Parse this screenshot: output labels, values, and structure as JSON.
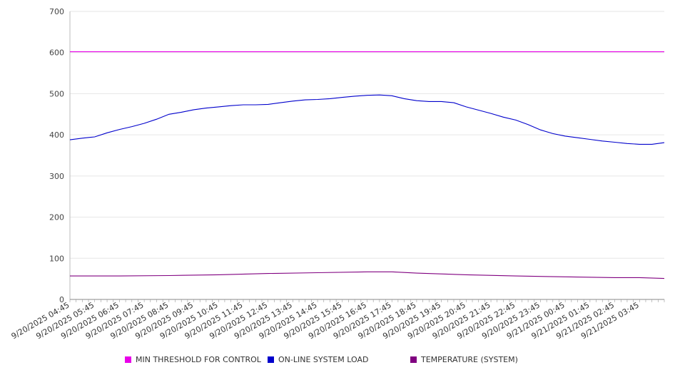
{
  "chart_data": {
    "type": "line",
    "title": "",
    "xlabel": "",
    "ylabel": "",
    "ylim": [
      0,
      700
    ],
    "yticks": [
      0,
      100,
      200,
      300,
      400,
      500,
      600,
      700
    ],
    "grid": "horizontal",
    "legend_position": "bottom",
    "x_tick_labels": [
      "9/20/2025 04:45",
      "9/20/2025 05:45",
      "9/20/2025 06:45",
      "9/20/2025 07:45",
      "9/20/2025 08:45",
      "9/20/2025 09:45",
      "9/20/2025 10:45",
      "9/20/2025 11:45",
      "9/20/2025 12:45",
      "9/20/2025 13:45",
      "9/20/2025 14:45",
      "9/20/2025 15:45",
      "9/20/2025 16:45",
      "9/20/2025 17:45",
      "9/20/2025 18:45",
      "9/20/2025 19:45",
      "9/20/2025 20:45",
      "9/20/2025 21:45",
      "9/20/2025 22:45",
      "9/20/2025 23:45",
      "9/21/2025 00:45",
      "9/21/2025 01:45",
      "9/21/2025 02:45",
      "9/21/2025 03:45"
    ],
    "x_range": [
      "9/20/2025 04:45",
      "9/21/2025 04:45"
    ],
    "series": [
      {
        "name": "MIN THRESHOLD FOR CONTROL",
        "color": "#e800e8",
        "points": [
          [
            "9/20/2025 04:45",
            602
          ],
          [
            "9/21/2025 04:45",
            602
          ]
        ]
      },
      {
        "name": "ON-LINE SYSTEM LOAD",
        "color": "#0000cc",
        "points": [
          [
            "9/20/2025 04:45",
            388
          ],
          [
            "9/20/2025 05:15",
            392
          ],
          [
            "9/20/2025 05:45",
            395
          ],
          [
            "9/20/2025 06:15",
            405
          ],
          [
            "9/20/2025 06:45",
            413
          ],
          [
            "9/20/2025 07:15",
            420
          ],
          [
            "9/20/2025 07:45",
            428
          ],
          [
            "9/20/2025 08:15",
            438
          ],
          [
            "9/20/2025 08:45",
            450
          ],
          [
            "9/20/2025 09:15",
            455
          ],
          [
            "9/20/2025 09:45",
            461
          ],
          [
            "9/20/2025 10:15",
            465
          ],
          [
            "9/20/2025 10:45",
            468
          ],
          [
            "9/20/2025 11:15",
            471
          ],
          [
            "9/20/2025 11:45",
            473
          ],
          [
            "9/20/2025 12:15",
            473
          ],
          [
            "9/20/2025 12:45",
            474
          ],
          [
            "9/20/2025 13:15",
            478
          ],
          [
            "9/20/2025 13:45",
            482
          ],
          [
            "9/20/2025 14:15",
            485
          ],
          [
            "9/20/2025 14:45",
            486
          ],
          [
            "9/20/2025 15:15",
            488
          ],
          [
            "9/20/2025 15:45",
            491
          ],
          [
            "9/20/2025 16:15",
            494
          ],
          [
            "9/20/2025 16:45",
            496
          ],
          [
            "9/20/2025 17:15",
            497
          ],
          [
            "9/20/2025 17:45",
            495
          ],
          [
            "9/20/2025 18:15",
            488
          ],
          [
            "9/20/2025 18:45",
            483
          ],
          [
            "9/20/2025 19:15",
            481
          ],
          [
            "9/20/2025 19:45",
            481
          ],
          [
            "9/20/2025 20:15",
            478
          ],
          [
            "9/20/2025 20:45",
            468
          ],
          [
            "9/20/2025 21:15",
            460
          ],
          [
            "9/20/2025 21:45",
            452
          ],
          [
            "9/20/2025 22:15",
            443
          ],
          [
            "9/20/2025 22:45",
            436
          ],
          [
            "9/20/2025 23:15",
            425
          ],
          [
            "9/20/2025 23:45",
            412
          ],
          [
            "9/21/2025 00:15",
            403
          ],
          [
            "9/21/2025 00:45",
            397
          ],
          [
            "9/21/2025 01:15",
            393
          ],
          [
            "9/21/2025 01:45",
            389
          ],
          [
            "9/21/2025 02:15",
            385
          ],
          [
            "9/21/2025 02:45",
            382
          ],
          [
            "9/21/2025 03:15",
            379
          ],
          [
            "9/21/2025 03:45",
            377
          ],
          [
            "9/21/2025 04:15",
            377
          ],
          [
            "9/21/2025 04:45",
            381
          ]
        ]
      },
      {
        "name": "TEMPERATURE (SYSTEM)",
        "color": "#800080",
        "points": [
          [
            "9/20/2025 04:45",
            57
          ],
          [
            "9/20/2025 06:45",
            57
          ],
          [
            "9/20/2025 08:45",
            58
          ],
          [
            "9/20/2025 10:45",
            60
          ],
          [
            "9/20/2025 12:45",
            63
          ],
          [
            "9/20/2025 14:45",
            65
          ],
          [
            "9/20/2025 16:45",
            67
          ],
          [
            "9/20/2025 17:45",
            67
          ],
          [
            "9/20/2025 18:45",
            64
          ],
          [
            "9/20/2025 20:45",
            60
          ],
          [
            "9/20/2025 22:45",
            57
          ],
          [
            "9/21/2025 00:45",
            55
          ],
          [
            "9/21/2025 02:45",
            53
          ],
          [
            "9/21/2025 03:45",
            53
          ],
          [
            "9/21/2025 04:45",
            51
          ]
        ]
      }
    ]
  }
}
